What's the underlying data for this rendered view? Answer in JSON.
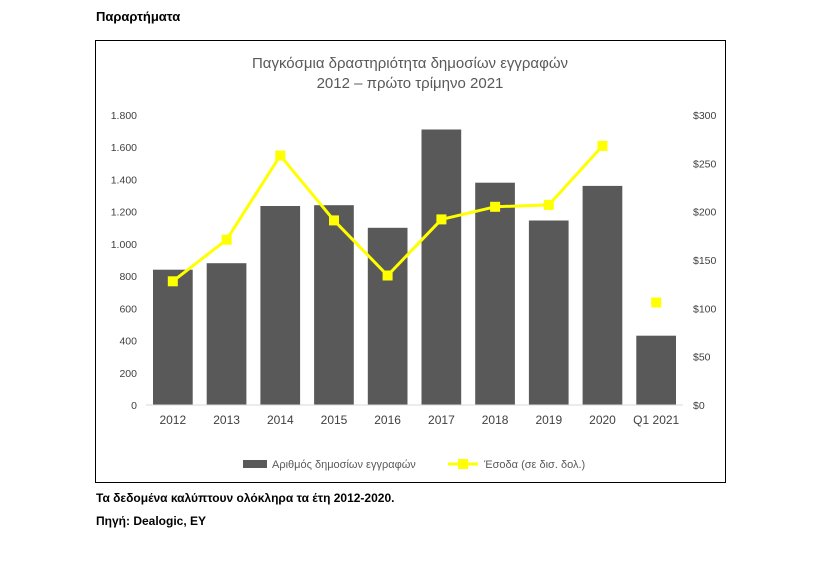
{
  "page": {
    "heading": "Παραρτήματα",
    "note": "Τα δεδομένα καλύπτουν ολόκληρα τα έτη 2012-2020.",
    "source": "Πηγή: Dealogic, EY"
  },
  "colors": {
    "bars": "#595959",
    "line": "#ffff00",
    "axis": "#d9d9d9",
    "title": "#595959"
  },
  "chart_data": {
    "type": "bar",
    "title_lines": [
      "Παγκόσμια δραστηριότητα δημοσίων εγγραφών",
      "2012 – πρώτο τρίμηνο 2021"
    ],
    "categories": [
      "2012",
      "2013",
      "2014",
      "2015",
      "2016",
      "2017",
      "2018",
      "2019",
      "2020",
      "Q1 2021"
    ],
    "y_left": {
      "min": 0,
      "max": 1800,
      "ticks": [
        0,
        200,
        400,
        600,
        800,
        1000,
        1200,
        1400,
        1600,
        1800
      ],
      "tick_labels": [
        "0",
        "200",
        "400",
        "600",
        "800",
        "1.000",
        "1.200",
        "1.400",
        "1.600",
        "1.800"
      ]
    },
    "y_right": {
      "min": 0,
      "max": 300,
      "ticks": [
        0,
        50,
        100,
        150,
        200,
        250,
        300
      ],
      "tick_labels": [
        "$0",
        "$50",
        "$100",
        "$150",
        "$200",
        "$250",
        "$300"
      ]
    },
    "series": [
      {
        "name": "Αριθμός δημοσίων εγγραφών",
        "kind": "bar",
        "axis": "left",
        "values": [
          840,
          880,
          1235,
          1240,
          1100,
          1710,
          1380,
          1145,
          1360,
          430
        ]
      },
      {
        "name": "Έσοδα (σε δισ. δολ.)",
        "kind": "line",
        "axis": "right",
        "marker": "square",
        "values": [
          128,
          171,
          258,
          191,
          134,
          192,
          205,
          207,
          268,
          106
        ],
        "connected_points": 9
      }
    ],
    "legend_position": "bottom",
    "grid": false
  }
}
